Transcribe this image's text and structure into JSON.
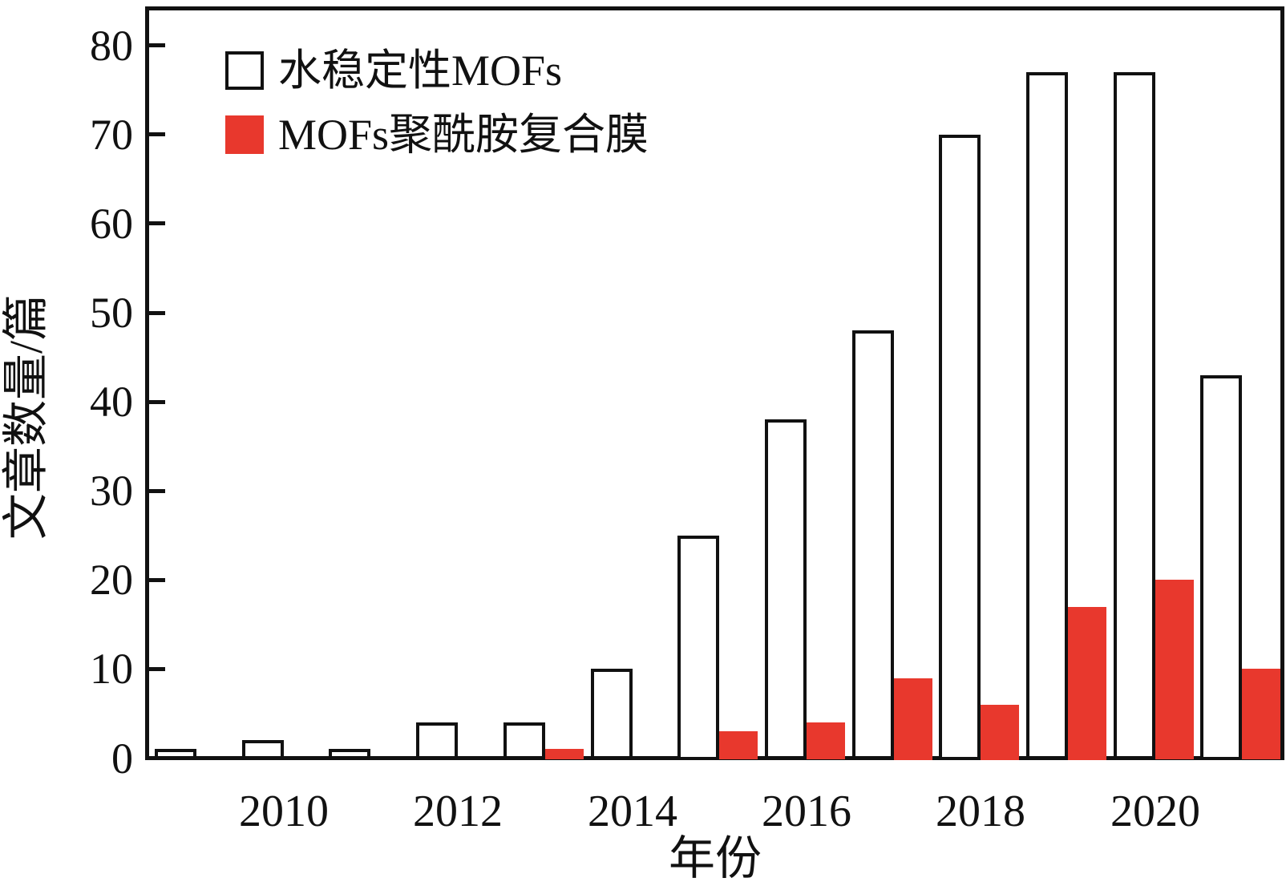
{
  "chart_data": {
    "type": "bar",
    "title": "",
    "categories": [
      "2009",
      "2010",
      "2011",
      "2012",
      "2013",
      "2014",
      "2015",
      "2016",
      "2017",
      "2018",
      "2019",
      "2020",
      "2021"
    ],
    "series": [
      {
        "name": "水稳定性MOFs",
        "fill": "#ffffff",
        "stroke": "#111111",
        "values": [
          1,
          2,
          1,
          4,
          4,
          10,
          25,
          38,
          48,
          70,
          77,
          77,
          43
        ]
      },
      {
        "name": "MOFs聚酰胺复合膜",
        "fill": "#e8382d",
        "stroke": "none",
        "values": [
          0,
          0,
          0,
          0,
          1,
          0,
          3,
          4,
          9,
          6,
          17,
          20,
          10
        ]
      }
    ],
    "xlabel": "年份",
    "ylabel": "文章数量/篇",
    "ylim": [
      0,
      84
    ],
    "yticks": [
      "0",
      "10",
      "20",
      "30",
      "40",
      "50",
      "60",
      "70",
      "80"
    ],
    "xtick_labels": [
      "2010",
      "2012",
      "2014",
      "2016",
      "2018",
      "2020"
    ],
    "legend_position": "top-left",
    "grid": false,
    "colors": {
      "axis": "#111111",
      "background": "#ffffff",
      "accent_red": "#e8382d"
    }
  }
}
